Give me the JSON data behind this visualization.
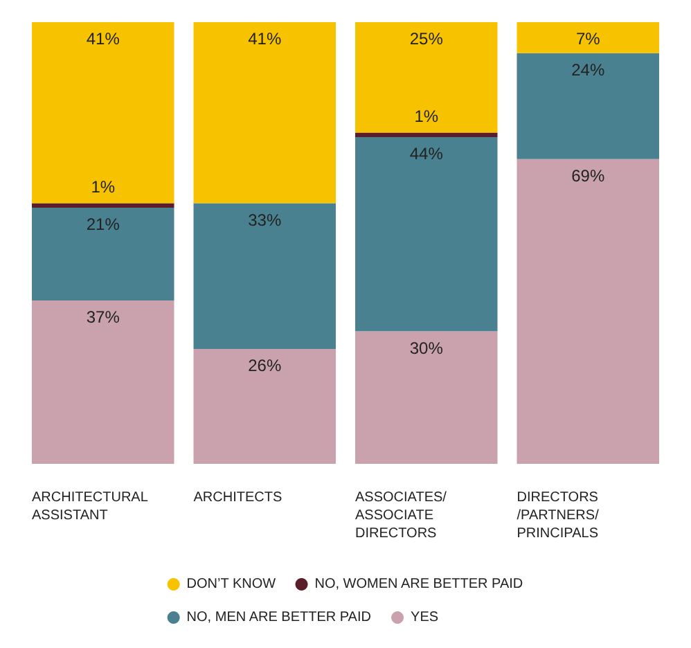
{
  "chart_data": {
    "type": "bar",
    "stacked": true,
    "categories": [
      "ARCHITECTURAL\nASSISTANT",
      "ARCHITECTS",
      "ASSOCIATES/\nASSOCIATE\nDIRECTORS",
      "DIRECTORS\n/PARTNERS/\nPRINCIPALS"
    ],
    "ylim": [
      0,
      100
    ],
    "tick_labels": "x",
    "legend": "bottom",
    "series": [
      {
        "name": "YES",
        "color": "#c9a2ae",
        "values": [
          37,
          26,
          30,
          69
        ],
        "value_labels": [
          "37%",
          "26%",
          "30%",
          "69%"
        ]
      },
      {
        "name": "NO, MEN ARE BETTER PAID",
        "color": "#4a8191",
        "values": [
          21,
          33,
          44,
          24
        ],
        "value_labels": [
          "21%",
          "33%",
          "44%",
          "24%"
        ]
      },
      {
        "name": "NO, WOMEN ARE BETTER PAID",
        "color": "#5a1d29",
        "values": [
          1,
          0,
          1,
          0
        ],
        "value_labels": [
          "1%",
          null,
          "1%",
          null
        ]
      },
      {
        "name": "DON’T KNOW",
        "color": "#f7c300",
        "values": [
          41,
          41,
          25,
          7
        ],
        "value_labels": [
          "41%",
          "41%",
          "25%",
          "7%"
        ]
      }
    ]
  }
}
